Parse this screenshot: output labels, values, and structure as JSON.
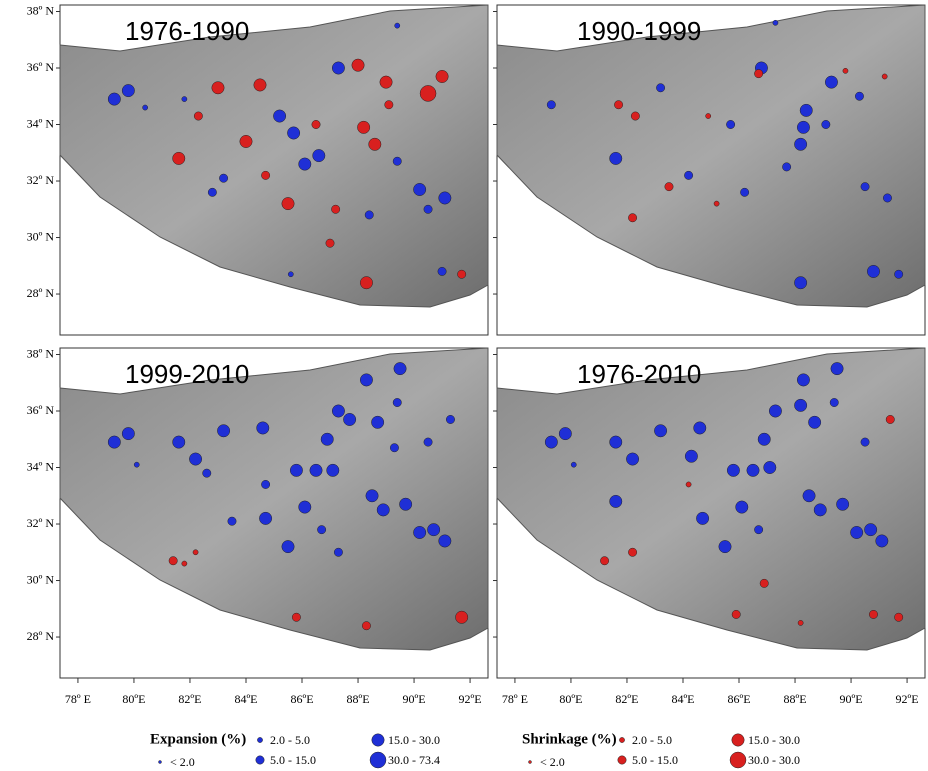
{
  "lonlim": [
    77.36,
    92.64
  ],
  "latlim": [
    26.55,
    38.23
  ],
  "lat_ticks": [
    {
      "value": 38,
      "label": "38º N"
    },
    {
      "value": 36,
      "label": "36º N"
    },
    {
      "value": 34,
      "label": "34º N"
    },
    {
      "value": 32,
      "label": "32º N"
    },
    {
      "value": 30,
      "label": "30º N"
    },
    {
      "value": 28,
      "label": "28º N"
    }
  ],
  "lon_ticks": [
    {
      "value": 78,
      "label": "78º E"
    },
    {
      "value": 80,
      "label": "80ºE"
    },
    {
      "value": 82,
      "label": "82ºE"
    },
    {
      "value": 84,
      "label": "84ºE"
    },
    {
      "value": 86,
      "label": "86ºE"
    },
    {
      "value": 88,
      "label": "88ºE"
    },
    {
      "value": 90,
      "label": "90ºE"
    },
    {
      "value": 92,
      "label": "92ºE"
    }
  ],
  "legend": {
    "expansion": {
      "title": "Expansion (%)",
      "color": "#1f2fd6",
      "classes": [
        "< 2.0",
        "2.0 - 5.0",
        "5.0 - 15.0",
        "15.0 - 30.0",
        "30.0 - 73.4"
      ]
    },
    "shrinkage": {
      "title": "Shrinkage (%)",
      "color": "#d8201f",
      "classes": [
        "< 2.0",
        "2.0 - 5.0",
        "5.0 - 15.0",
        "15.0 - 30.0",
        "30.0 - 30.0"
      ]
    }
  },
  "panels": [
    {
      "title": "1976-1990",
      "expansion": [
        [
          79.3,
          34.9,
          3
        ],
        [
          79.8,
          35.2,
          3
        ],
        [
          85.2,
          34.3,
          3
        ],
        [
          85.7,
          33.7,
          3
        ],
        [
          86.1,
          32.6,
          3
        ],
        [
          86.6,
          32.9,
          3
        ],
        [
          87.3,
          36,
          3
        ],
        [
          90.2,
          31.7,
          3
        ],
        [
          91.1,
          31.4,
          3
        ],
        [
          89.4,
          32.7,
          2
        ],
        [
          83.2,
          32.1,
          2
        ],
        [
          82.8,
          31.6,
          2
        ],
        [
          91,
          28.8,
          2
        ],
        [
          85.6,
          28.7,
          1
        ],
        [
          81.8,
          34.9,
          1
        ],
        [
          90.5,
          31,
          2
        ],
        [
          88.4,
          30.8,
          2
        ],
        [
          89.4,
          37.5,
          1
        ],
        [
          80.4,
          34.6,
          1
        ]
      ],
      "shrinkage": [
        [
          83,
          35.3,
          3
        ],
        [
          84.5,
          35.4,
          3
        ],
        [
          84,
          33.4,
          3
        ],
        [
          88.2,
          33.9,
          3
        ],
        [
          88,
          36.1,
          3
        ],
        [
          90.5,
          35.1,
          4
        ],
        [
          89,
          35.5,
          3
        ],
        [
          81.6,
          32.8,
          3
        ],
        [
          84.7,
          32.2,
          2
        ],
        [
          85.5,
          31.2,
          3
        ],
        [
          88.3,
          28.4,
          3
        ],
        [
          87.2,
          31,
          2
        ],
        [
          87,
          29.8,
          2
        ],
        [
          86.5,
          34,
          2
        ],
        [
          91,
          35.7,
          3
        ],
        [
          88.6,
          33.3,
          3
        ],
        [
          89.1,
          34.7,
          2
        ],
        [
          82.3,
          34.3,
          2
        ],
        [
          91.7,
          28.7,
          2
        ]
      ]
    },
    {
      "title": "1990-1999",
      "expansion": [
        [
          79.3,
          34.7,
          2
        ],
        [
          81.6,
          32.8,
          3
        ],
        [
          86.8,
          36,
          3
        ],
        [
          88.4,
          34.5,
          3
        ],
        [
          88.3,
          33.9,
          3
        ],
        [
          88.2,
          33.3,
          3
        ],
        [
          89.1,
          34,
          2
        ],
        [
          87.7,
          32.5,
          2
        ],
        [
          88.2,
          28.4,
          3
        ],
        [
          90.8,
          28.8,
          3
        ],
        [
          91.7,
          28.7,
          2
        ],
        [
          83.2,
          35.3,
          2
        ],
        [
          85.7,
          34,
          2
        ],
        [
          89.3,
          35.5,
          3
        ],
        [
          90.3,
          35,
          2
        ],
        [
          90.5,
          31.8,
          2
        ],
        [
          91.3,
          31.4,
          2
        ],
        [
          84.2,
          32.2,
          2
        ],
        [
          86.2,
          31.6,
          2
        ],
        [
          87.3,
          37.6,
          1
        ]
      ],
      "shrinkage": [
        [
          81.7,
          34.7,
          2
        ],
        [
          82.3,
          34.3,
          2
        ],
        [
          86.7,
          35.8,
          2
        ],
        [
          83.5,
          31.8,
          2
        ],
        [
          85.2,
          31.2,
          1
        ],
        [
          82.2,
          30.7,
          2
        ],
        [
          89.8,
          35.9,
          1
        ],
        [
          84.9,
          34.3,
          1
        ],
        [
          91.2,
          35.7,
          1
        ]
      ]
    },
    {
      "title": "1999-2010",
      "expansion": [
        [
          79.3,
          34.9,
          3
        ],
        [
          79.8,
          35.2,
          3
        ],
        [
          81.6,
          34.9,
          3
        ],
        [
          82.2,
          34.3,
          3
        ],
        [
          82.6,
          33.8,
          2
        ],
        [
          83.2,
          35.3,
          3
        ],
        [
          84.6,
          35.4,
          3
        ],
        [
          84.7,
          33.4,
          2
        ],
        [
          85.8,
          33.9,
          3
        ],
        [
          86.5,
          33.9,
          3
        ],
        [
          87.1,
          33.9,
          3
        ],
        [
          87.3,
          36,
          3
        ],
        [
          87.7,
          35.7,
          3
        ],
        [
          88.3,
          37.1,
          3
        ],
        [
          89.5,
          37.5,
          3
        ],
        [
          88.7,
          35.6,
          3
        ],
        [
          88.5,
          33,
          3
        ],
        [
          88.9,
          32.5,
          3
        ],
        [
          89.7,
          32.7,
          3
        ],
        [
          90.2,
          31.7,
          3
        ],
        [
          91.1,
          31.4,
          3
        ],
        [
          90.7,
          31.8,
          3
        ],
        [
          86.1,
          32.6,
          3
        ],
        [
          85.5,
          31.2,
          3
        ],
        [
          87.3,
          31,
          2
        ],
        [
          84.7,
          32.2,
          3
        ],
        [
          83.5,
          32.1,
          2
        ],
        [
          86.9,
          35,
          3
        ],
        [
          90.5,
          34.9,
          2
        ],
        [
          91.3,
          35.7,
          2
        ],
        [
          89.4,
          36.3,
          2
        ],
        [
          89.3,
          34.7,
          2
        ],
        [
          80.1,
          34.1,
          1
        ],
        [
          86.7,
          31.8,
          2
        ]
      ],
      "shrinkage": [
        [
          91.7,
          28.7,
          3
        ],
        [
          85.8,
          28.7,
          2
        ],
        [
          88.3,
          28.4,
          2
        ],
        [
          81.4,
          30.7,
          2
        ],
        [
          82.2,
          31,
          1
        ],
        [
          81.8,
          30.6,
          1
        ]
      ]
    },
    {
      "title": "1976-2010",
      "expansion": [
        [
          79.3,
          34.9,
          3
        ],
        [
          79.8,
          35.2,
          3
        ],
        [
          81.6,
          34.9,
          3
        ],
        [
          82.2,
          34.3,
          3
        ],
        [
          83.2,
          35.3,
          3
        ],
        [
          84.6,
          35.4,
          3
        ],
        [
          84.3,
          34.4,
          3
        ],
        [
          85.8,
          33.9,
          3
        ],
        [
          86.5,
          33.9,
          3
        ],
        [
          87.1,
          34,
          3
        ],
        [
          87.3,
          36,
          3
        ],
        [
          88.3,
          37.1,
          3
        ],
        [
          89.5,
          37.5,
          3
        ],
        [
          88.7,
          35.6,
          3
        ],
        [
          88.5,
          33,
          3
        ],
        [
          88.9,
          32.5,
          3
        ],
        [
          89.7,
          32.7,
          3
        ],
        [
          90.2,
          31.7,
          3
        ],
        [
          91.1,
          31.4,
          3
        ],
        [
          90.7,
          31.8,
          3
        ],
        [
          86.1,
          32.6,
          3
        ],
        [
          85.5,
          31.2,
          3
        ],
        [
          84.7,
          32.2,
          3
        ],
        [
          81.6,
          32.8,
          3
        ],
        [
          86.9,
          35,
          3
        ],
        [
          88.2,
          36.2,
          3
        ],
        [
          90.5,
          34.9,
          2
        ],
        [
          89.4,
          36.3,
          2
        ],
        [
          80.1,
          34.1,
          1
        ],
        [
          86.7,
          31.8,
          2
        ]
      ],
      "shrinkage": [
        [
          91.4,
          35.7,
          2
        ],
        [
          81.2,
          30.7,
          2
        ],
        [
          82.2,
          31,
          2
        ],
        [
          86.9,
          29.9,
          2
        ],
        [
          85.9,
          28.8,
          2
        ],
        [
          88.2,
          28.5,
          1
        ],
        [
          90.8,
          28.8,
          2
        ],
        [
          91.7,
          28.7,
          2
        ],
        [
          84.2,
          33.4,
          1
        ]
      ]
    }
  ]
}
